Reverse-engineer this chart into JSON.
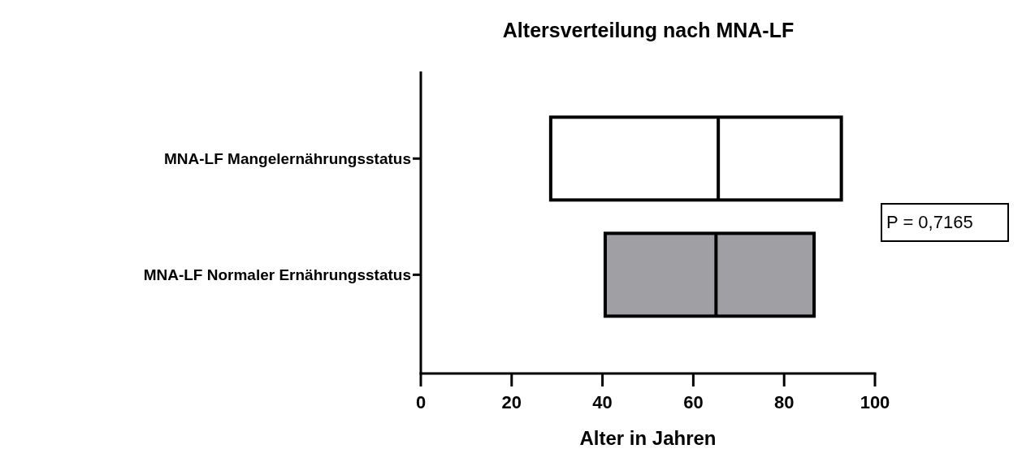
{
  "chart_data": {
    "type": "box",
    "title": "Altersverteilung nach MNA-LF",
    "xlabel": "Alter in Jahren",
    "orientation": "horizontal",
    "categories": [
      "MNA-LF Mangelernährungsstatus",
      "MNA-LF Normaler Ernährungsstatus"
    ],
    "boxes": [
      {
        "low": 28.6,
        "q1": 28.6,
        "median": 65.5,
        "q3": 92.6,
        "high": 92.6
      },
      {
        "low": 40.6,
        "q1": 40.6,
        "median": 65.0,
        "q3": 86.6,
        "high": 86.6
      }
    ],
    "colors": [
      "#ffffff",
      "#a09fa4"
    ],
    "xlim": [
      0,
      100
    ],
    "xticks": [
      0,
      20,
      40,
      60,
      80,
      100
    ],
    "annotations": [
      "P = 0,7165"
    ]
  }
}
